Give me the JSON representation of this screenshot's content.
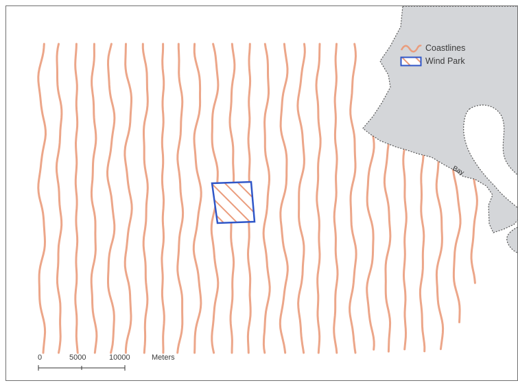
{
  "legend": {
    "items": [
      {
        "label": "Coastlines",
        "symbol": "wavy-line",
        "color": "#ea9c7c"
      },
      {
        "label": "Wind Park",
        "symbol": "hatched-box",
        "color": "#ea9c7c",
        "outline": "#2f56c8"
      }
    ]
  },
  "scale_bar": {
    "ticks": [
      "0",
      "5000",
      "10000"
    ],
    "unit": "Meters"
  },
  "land_label": "Bay",
  "colors": {
    "contour": "#ea9c7c",
    "land": "#d4d6d9",
    "land_outline": "#555555",
    "wind_park_outline": "#2f56c8",
    "wind_park_hatch": "#ea9c7c",
    "frame": "#6f6f6f"
  }
}
